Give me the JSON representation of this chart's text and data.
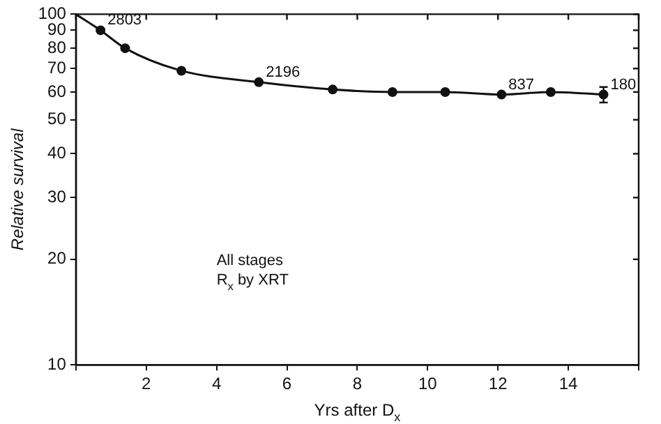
{
  "chart_data": {
    "type": "line",
    "xlabel": "Yrs after D$_{x}$",
    "ylabel": "Relative survival",
    "log": "y",
    "xlim": [
      0,
      16
    ],
    "xticks": [
      {
        "value": 0,
        "label": null
      },
      2,
      4,
      6,
      8,
      10,
      12,
      14,
      {
        "value": 16,
        "label": null
      }
    ],
    "ylim": [
      10,
      100
    ],
    "yticks": [
      10,
      20,
      30,
      40,
      50,
      60,
      70,
      80,
      90,
      100
    ],
    "grid": false,
    "legend": false,
    "series": [
      {
        "color": "#111111",
        "marker": "none",
        "x": [
          0,
          0.7,
          1.4,
          3.0,
          5.2,
          7.3,
          9.0,
          10.5,
          12.1,
          13.5,
          15.0
        ],
        "values": [
          100,
          90,
          80,
          69,
          64,
          61,
          60,
          60,
          59,
          60,
          59
        ]
      },
      {
        "type": "scatter",
        "color": "#111111",
        "marker": "circle",
        "x": [
          0.7,
          1.4,
          3.0,
          5.2,
          7.3,
          9.0,
          10.5,
          12.1,
          13.5,
          15.0
        ],
        "values": [
          90,
          80,
          69,
          64,
          61,
          60,
          60,
          59,
          60,
          59
        ],
        "errors": [
          null,
          null,
          null,
          null,
          null,
          null,
          null,
          null,
          null,
          3
        ]
      }
    ],
    "annotations": [
      {
        "text": "2803",
        "x": 0.7,
        "y": 90
      },
      {
        "text": "2196",
        "x": 5.2,
        "y": 64
      },
      {
        "text": "837",
        "x": 12.1,
        "y": 59
      },
      {
        "text": "180",
        "x": 15.0,
        "y": 59
      },
      "All stages",
      "R$_{x}$ by XRT"
    ]
  }
}
